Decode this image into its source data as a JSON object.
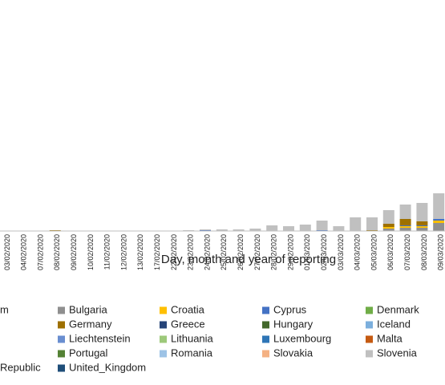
{
  "chart_data": {
    "type": "stacked_bar",
    "x_label": "Day, month and year of reporting",
    "categories": [
      "03/02/2020",
      "04/02/2020",
      "07/02/2020",
      "08/02/2020",
      "09/02/2020",
      "10/02/2020",
      "11/02/2020",
      "12/02/2020",
      "13/02/2020",
      "17/02/2020",
      "22/02/2020",
      "23/02/2020",
      "24/02/2020",
      "25/02/2020",
      "26/02/2020",
      "27/02/2020",
      "28/02/2020",
      "29/02/2020",
      "01/03/2020",
      "02/03/2020",
      "03/03/2020",
      "04/03/2020",
      "05/03/2020",
      "06/03/2020",
      "07/03/2020",
      "08/03/2020",
      "09/03/2020"
    ],
    "ylim": [
      0,
      280
    ],
    "series": [
      {
        "name": "m",
        "values": [
          0,
          0,
          0,
          0,
          0,
          0,
          0,
          0,
          0,
          0,
          0,
          0,
          0,
          0,
          0,
          0,
          0,
          0,
          0,
          0,
          0,
          0,
          0,
          0,
          0,
          0,
          0
        ]
      },
      {
        "name": "Bulgaria",
        "color": "#8f8f8f",
        "values": [
          0,
          0,
          0,
          0,
          0,
          0,
          0,
          0,
          0,
          0,
          0,
          0,
          0,
          0,
          0,
          0,
          0,
          0,
          0,
          0,
          0,
          0,
          0,
          3,
          4,
          4,
          10
        ]
      },
      {
        "name": "Croatia",
        "color": "#ffc000",
        "values": [
          0,
          0,
          0,
          0,
          0,
          0,
          0,
          0,
          0,
          0,
          0,
          0,
          0,
          0,
          0,
          0,
          0,
          0,
          0,
          0,
          0,
          0,
          0,
          2,
          2,
          2,
          3
        ]
      },
      {
        "name": "Cyprus",
        "color": "#4472c4",
        "values": [
          0,
          0,
          0,
          0,
          0,
          0,
          0,
          0,
          0,
          0,
          0,
          0,
          1,
          0,
          0,
          0,
          0,
          0,
          0,
          1,
          0,
          0,
          0,
          0,
          1,
          1,
          2
        ]
      },
      {
        "name": "Denmark",
        "color": "#70ad47",
        "values": [
          0,
          0,
          0,
          0,
          0,
          0,
          0,
          0,
          0,
          0,
          0,
          0,
          0,
          0,
          0,
          0,
          0,
          0,
          0,
          0,
          0,
          0,
          0,
          0,
          0,
          0,
          0
        ]
      },
      {
        "name": "Germany",
        "color": "#9e7000",
        "values": [
          0,
          0,
          0,
          1,
          0,
          0,
          0,
          0,
          0,
          0,
          0,
          0,
          0,
          0,
          0,
          0,
          0,
          0,
          0,
          0,
          0,
          0,
          1,
          4,
          8,
          5,
          0
        ]
      },
      {
        "name": "Greece",
        "color": "#264478",
        "values": [
          0,
          0,
          0,
          0,
          0,
          0,
          0,
          0,
          0,
          0,
          0,
          0,
          0,
          0,
          0,
          0,
          0,
          0,
          0,
          0,
          0,
          0,
          0,
          0,
          0,
          0,
          0
        ]
      },
      {
        "name": "Hungary",
        "color": "#43682b",
        "values": [
          0,
          0,
          0,
          0,
          0,
          0,
          0,
          0,
          0,
          0,
          0,
          0,
          0,
          0,
          0,
          0,
          0,
          0,
          0,
          0,
          0,
          0,
          0,
          0,
          0,
          0,
          0
        ]
      },
      {
        "name": "Iceland",
        "color": "#7cafdd",
        "values": [
          0,
          0,
          0,
          0,
          0,
          0,
          0,
          0,
          0,
          0,
          0,
          0,
          0,
          0,
          0,
          0,
          0,
          0,
          0,
          0,
          0,
          0,
          0,
          0,
          0,
          0,
          0
        ]
      },
      {
        "name": "Liechtenstein",
        "color": "#698ed0",
        "values": [
          0,
          0,
          0,
          0,
          0,
          0,
          0,
          0,
          0,
          0,
          0,
          0,
          0,
          0,
          0,
          0,
          0,
          0,
          0,
          0,
          0,
          0,
          0,
          0,
          0,
          0,
          0
        ]
      },
      {
        "name": "Lithuania",
        "color": "#9dc97a",
        "values": [
          0,
          0,
          0,
          0,
          0,
          0,
          0,
          0,
          0,
          0,
          0,
          0,
          0,
          0,
          0,
          0,
          0,
          0,
          0,
          0,
          0,
          0,
          0,
          0,
          0,
          0,
          0
        ]
      },
      {
        "name": "Luxembourg",
        "color": "#2e75b6",
        "values": [
          0,
          0,
          0,
          0,
          0,
          0,
          0,
          0,
          0,
          0,
          0,
          0,
          0,
          0,
          0,
          0,
          0,
          0,
          0,
          0,
          0,
          0,
          0,
          0,
          0,
          0,
          0
        ]
      },
      {
        "name": "Malta",
        "color": "#c55a11",
        "values": [
          0,
          0,
          0,
          0,
          0,
          0,
          0,
          0,
          0,
          0,
          0,
          0,
          0,
          0,
          0,
          0,
          0,
          0,
          0,
          0,
          0,
          0,
          0,
          0,
          0,
          0,
          0
        ]
      },
      {
        "name": "Portugal",
        "color": "#548235",
        "values": [
          0,
          0,
          0,
          0,
          0,
          0,
          0,
          0,
          0,
          0,
          0,
          0,
          0,
          0,
          0,
          0,
          0,
          0,
          0,
          0,
          0,
          0,
          0,
          0,
          0,
          0,
          0
        ]
      },
      {
        "name": "Romania",
        "color": "#9dc3e6",
        "values": [
          0,
          0,
          0,
          0,
          0,
          0,
          0,
          0,
          0,
          0,
          0,
          0,
          0,
          0,
          0,
          0,
          0,
          0,
          0,
          0,
          0,
          0,
          0,
          0,
          0,
          0,
          0
        ]
      },
      {
        "name": "Slovakia",
        "color": "#f4b183",
        "values": [
          0,
          0,
          0,
          0,
          0,
          0,
          0,
          0,
          0,
          0,
          0,
          0,
          0,
          0,
          0,
          0,
          0,
          0,
          0,
          0,
          0,
          0,
          0,
          0,
          0,
          0,
          0
        ]
      },
      {
        "name": "Slovenia",
        "color": "#c0c0c0",
        "values": [
          0.5,
          0.5,
          0.5,
          0,
          0.5,
          0.5,
          0.3,
          0.3,
          0.3,
          0.3,
          0.5,
          1,
          1,
          2,
          2,
          3,
          7,
          6,
          8,
          12,
          6,
          17,
          16,
          17,
          18,
          23,
          32
        ]
      },
      {
        "name": "Republic",
        "values": [
          0,
          0,
          0,
          0,
          0,
          0,
          0,
          0,
          0,
          0,
          0,
          0,
          0,
          0,
          0,
          0,
          0,
          0,
          0,
          0,
          0,
          0,
          0,
          0,
          0,
          0,
          0
        ]
      },
      {
        "name": "United_Kingdom",
        "color": "#1f4e79",
        "values": [
          0,
          0,
          0,
          0,
          0,
          0,
          0,
          0,
          0,
          0,
          0,
          0,
          0,
          0,
          0,
          0,
          0,
          0,
          0,
          0,
          0,
          0,
          0,
          0,
          0,
          0,
          0
        ]
      }
    ]
  }
}
